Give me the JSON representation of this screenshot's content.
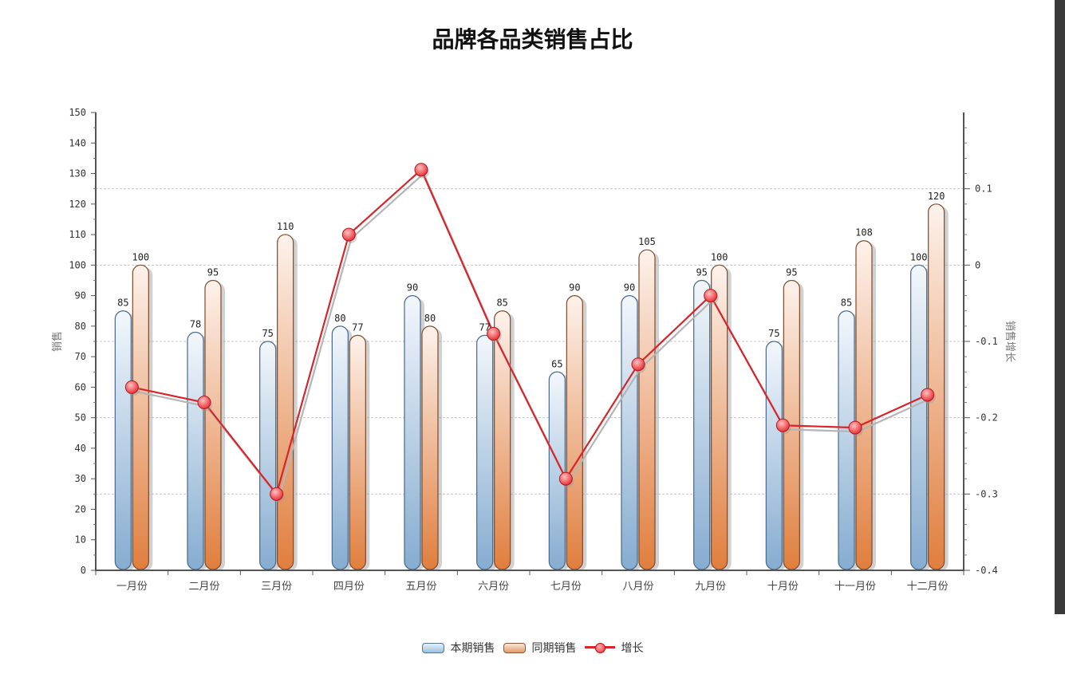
{
  "chart_data": {
    "type": "bar",
    "title": "品牌各品类销售占比",
    "categories": [
      "一月份",
      "二月份",
      "三月份",
      "四月份",
      "五月份",
      "六月份",
      "七月份",
      "八月份",
      "九月份",
      "十月份",
      "十一月份",
      "十二月份"
    ],
    "series": [
      {
        "name": "本期销售",
        "type": "bar",
        "axis": "left",
        "values": [
          85,
          78,
          75,
          80,
          90,
          77,
          65,
          90,
          95,
          75,
          85,
          100
        ]
      },
      {
        "name": "同期销售",
        "type": "bar",
        "axis": "left",
        "values": [
          100,
          95,
          110,
          77,
          80,
          85,
          90,
          105,
          100,
          95,
          108,
          120
        ]
      },
      {
        "name": "增长",
        "type": "line",
        "axis": "right",
        "values": [
          -0.16,
          -0.18,
          -0.3,
          0.04,
          0.125,
          -0.09,
          -0.28,
          -0.13,
          -0.04,
          -0.21,
          -0.213,
          -0.17
        ]
      }
    ],
    "ylabel": "销售",
    "y2label": "销售增长",
    "ylim": [
      0,
      150
    ],
    "yticks": [
      0,
      10,
      20,
      30,
      40,
      50,
      60,
      70,
      80,
      90,
      100,
      110,
      120,
      130,
      140,
      150
    ],
    "y2lim": [
      -0.4,
      0.2
    ],
    "y2ticks": [
      -0.4,
      -0.3,
      -0.2,
      -0.1,
      0,
      0.1
    ],
    "y2ticklabels": [
      "-0.4",
      "-0.3",
      "-0.2",
      "-0.1",
      "0",
      "0.1"
    ],
    "grid": true,
    "legend": "bottom-center",
    "colors": {
      "current": "#8fb4d6",
      "previous": "#e28a52",
      "growth": "#d8252b"
    }
  },
  "legend": {
    "current": "本期销售",
    "previous": "同期销售",
    "growth": "增长"
  }
}
